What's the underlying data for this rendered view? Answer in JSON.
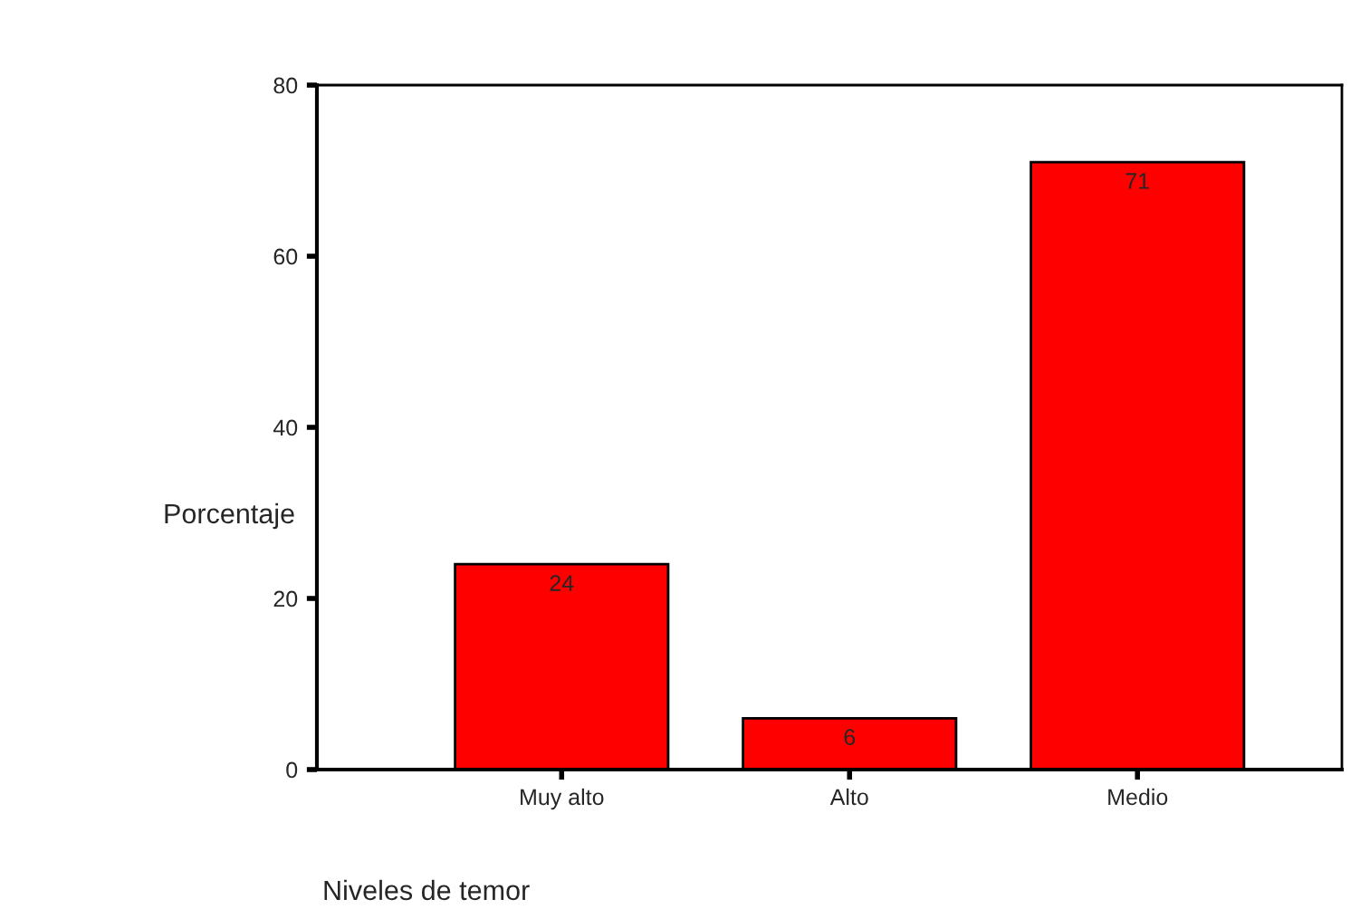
{
  "chart_data": {
    "type": "bar",
    "categories": [
      "Muy alto",
      "Alto",
      "Medio"
    ],
    "values": [
      24,
      6,
      71
    ],
    "color": "#ff0000",
    "ylabel": "Porcentaje",
    "xlabel": "Niveles de temor",
    "ylim": [
      0,
      80
    ],
    "yticks": [
      0,
      20,
      40,
      60,
      80
    ],
    "grid": false,
    "data_labels": true
  }
}
